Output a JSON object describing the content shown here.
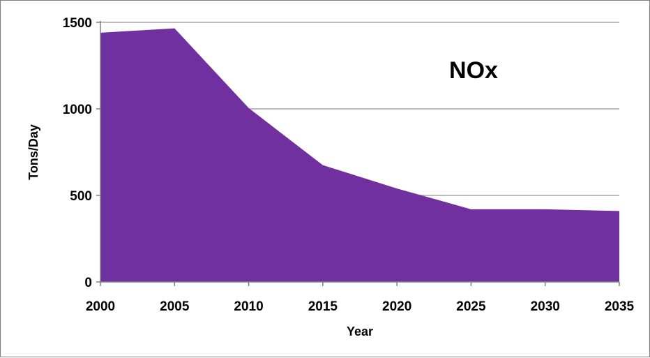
{
  "chart_data": {
    "type": "area",
    "title": "NOx",
    "xlabel": "Year",
    "ylabel": "Tons/Day",
    "x": [
      2000,
      2005,
      2010,
      2015,
      2020,
      2025,
      2030,
      2035
    ],
    "series": [
      {
        "values": [
          1440,
          1465,
          1005,
          675,
          540,
          420,
          420,
          410
        ]
      }
    ],
    "xlim": [
      2000,
      2035
    ],
    "ylim": [
      0,
      1500
    ],
    "yticks": [
      0,
      500,
      1000,
      1500
    ],
    "xticks": [
      2000,
      2005,
      2010,
      2015,
      2020,
      2025,
      2030,
      2035
    ],
    "grid": true,
    "legend": "none",
    "colors": {
      "area": "#7030a0",
      "grid": "#a6a6a6",
      "axis": "#7f7f7f"
    }
  }
}
